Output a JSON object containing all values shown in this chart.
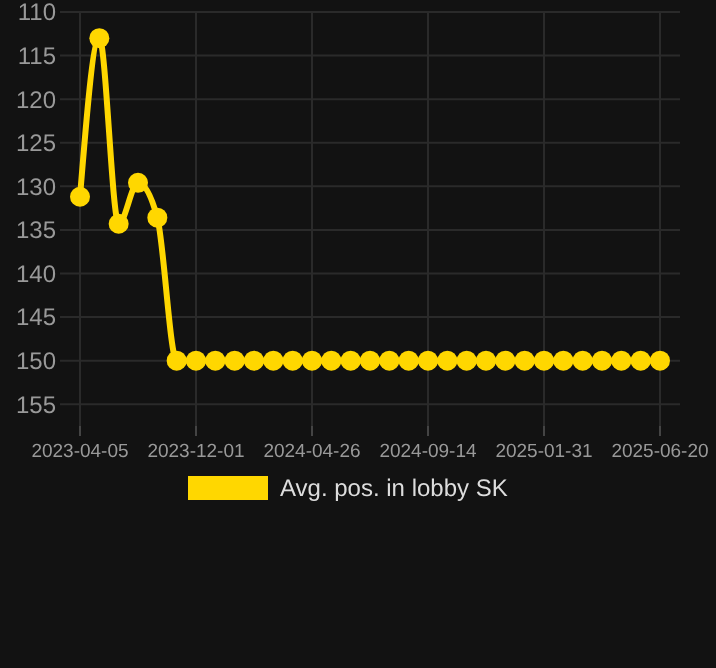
{
  "chart_data": {
    "type": "line",
    "categories": [
      "2023-04-05",
      null,
      null,
      null,
      null,
      null,
      "2023-12-01",
      null,
      null,
      null,
      null,
      null,
      "2024-04-26",
      null,
      null,
      null,
      null,
      null,
      "2024-09-14",
      null,
      null,
      null,
      null,
      null,
      "2025-01-31",
      null,
      null,
      null,
      null,
      null,
      "2025-06-20"
    ],
    "series": [
      {
        "name": "Avg. pos. in lobby SK",
        "color": "#ffd700",
        "values": [
          131.2,
          113,
          134.3,
          129.6,
          133.6,
          150,
          150,
          150,
          150,
          150,
          150,
          150,
          150,
          150,
          150,
          150,
          150,
          150,
          150,
          150,
          150,
          150,
          150,
          150,
          150,
          150,
          150,
          150,
          150,
          150,
          150
        ]
      }
    ],
    "ylim": [
      157.5,
      110
    ],
    "yticks": [
      110,
      115,
      120,
      125,
      130,
      135,
      140,
      145,
      150,
      155
    ],
    "grid": true,
    "legend": "bottom",
    "marker": "circle",
    "line_style": "solid"
  }
}
